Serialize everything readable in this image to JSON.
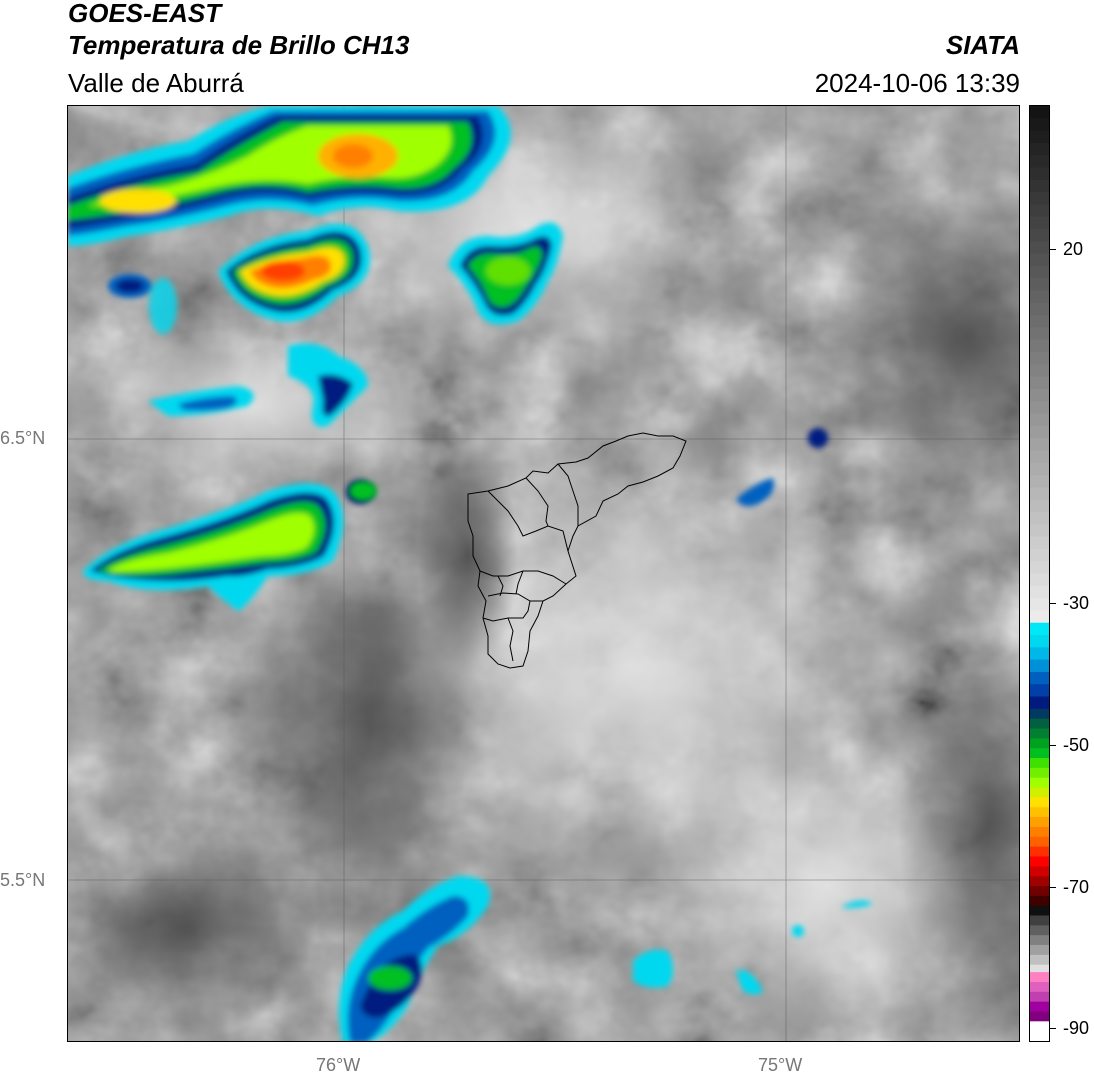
{
  "header": {
    "satellite": "GOES-EAST",
    "product": "Temperatura de Brillo CH13",
    "region": "Valle de Aburrá",
    "agency": "SIATA",
    "datetime": "2024-10-06 13:39"
  },
  "map": {
    "lat_labels": [
      "6.5°N",
      "5.5°N"
    ],
    "lon_labels": [
      "76°W",
      "75°W"
    ]
  },
  "colorbar": {
    "ticks": [
      "20",
      "-30",
      "-50",
      "-70",
      "-90"
    ],
    "colors": {
      "cyan": "#00d8f0",
      "blue": "#0060c0",
      "navy": "#001a80",
      "green": "#00c020",
      "lime": "#a0ff00",
      "yellow": "#ffe000",
      "orange": "#ff8000",
      "red": "#ff0000",
      "darkred": "#700000",
      "pink": "#ff80c0",
      "magenta": "#a000a0"
    }
  }
}
